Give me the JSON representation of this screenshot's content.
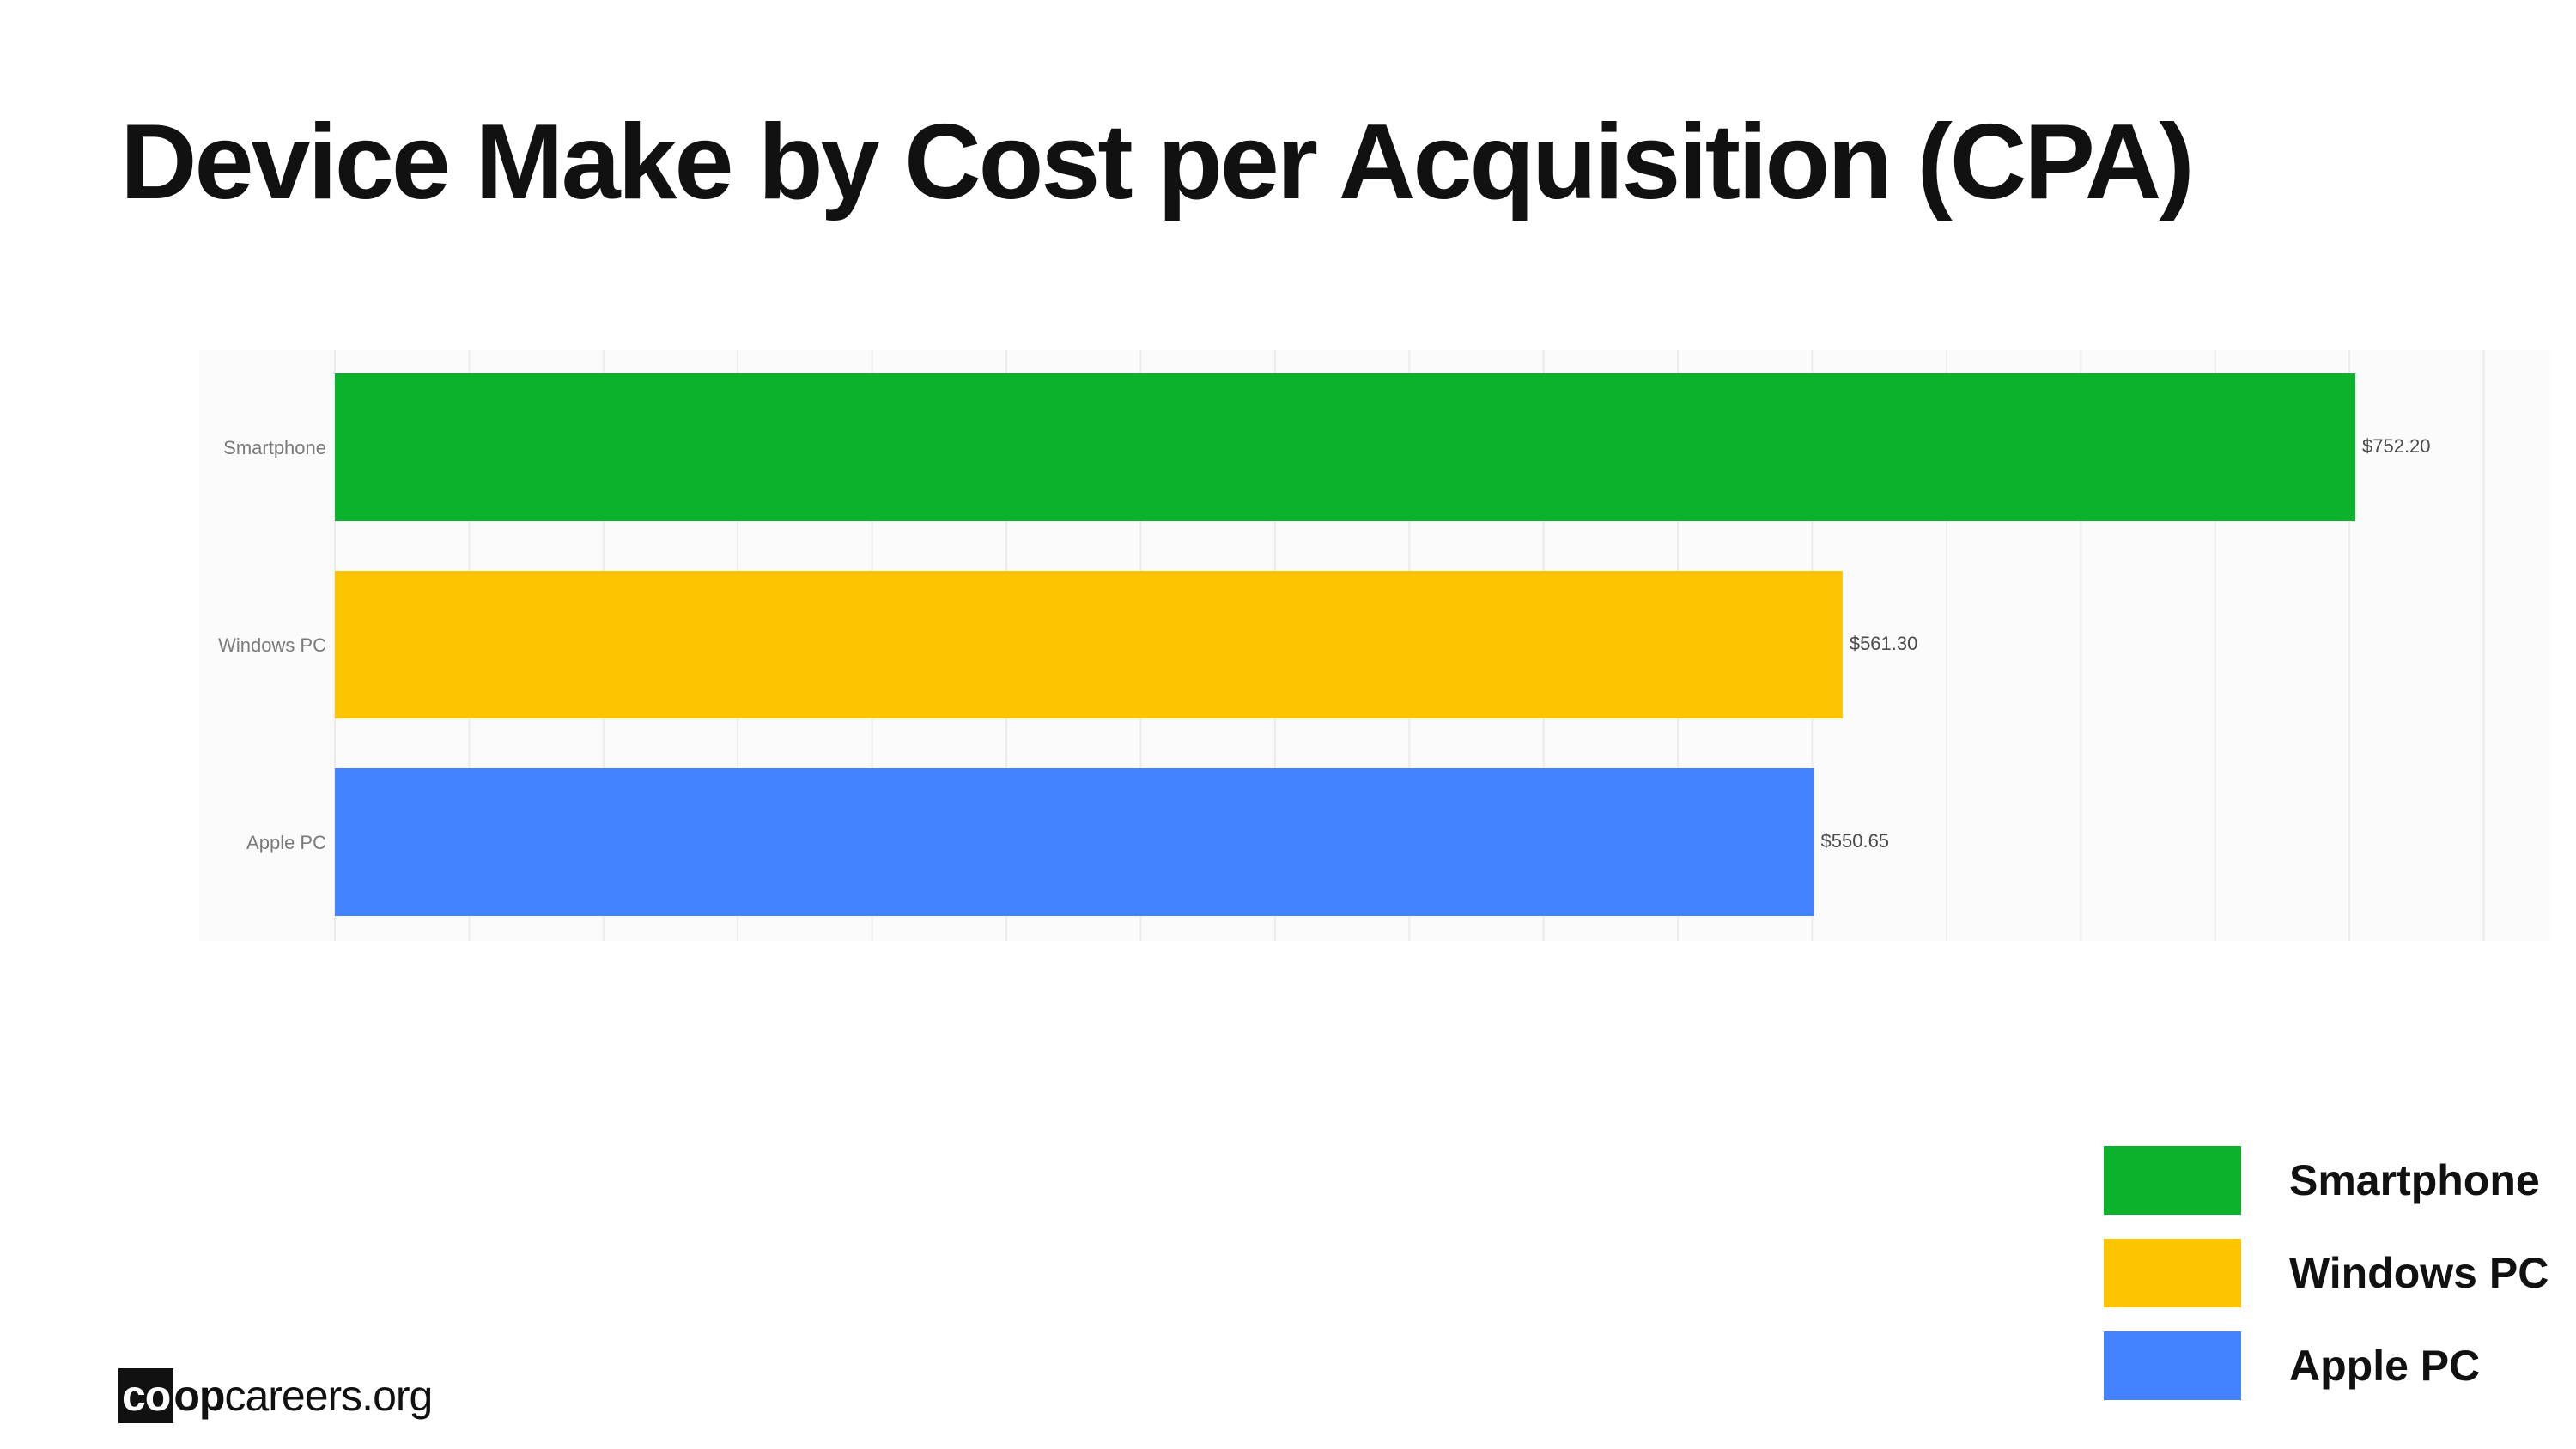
{
  "title": "Device Make by Cost per Acquisition (CPA)",
  "brand": {
    "box_text": "co",
    "bold_text": "op",
    "rest_text": "careers.org"
  },
  "legend": {
    "items": [
      {
        "label": "Smartphone",
        "color": "#0bb32c"
      },
      {
        "label": "Windows PC",
        "color": "#fdc401"
      },
      {
        "label": "Apple PC",
        "color": "#4382fd"
      }
    ]
  },
  "chart_data": {
    "type": "bar",
    "orientation": "horizontal",
    "title": "Device Make by Cost per Acquisition (CPA)",
    "xlabel": "",
    "ylabel": "",
    "categories": [
      "Smartphone",
      "Windows PC",
      "Apple PC"
    ],
    "values": [
      752.2,
      561.3,
      550.65
    ],
    "value_labels": [
      "$752.20",
      "$561.30",
      "$550.65"
    ],
    "colors": [
      "#0bb32c",
      "#fdc401",
      "#4382fd"
    ],
    "xlim": [
      0,
      800
    ],
    "grid": true,
    "x_ticks_shown": false,
    "legend_position": "bottom-right"
  }
}
